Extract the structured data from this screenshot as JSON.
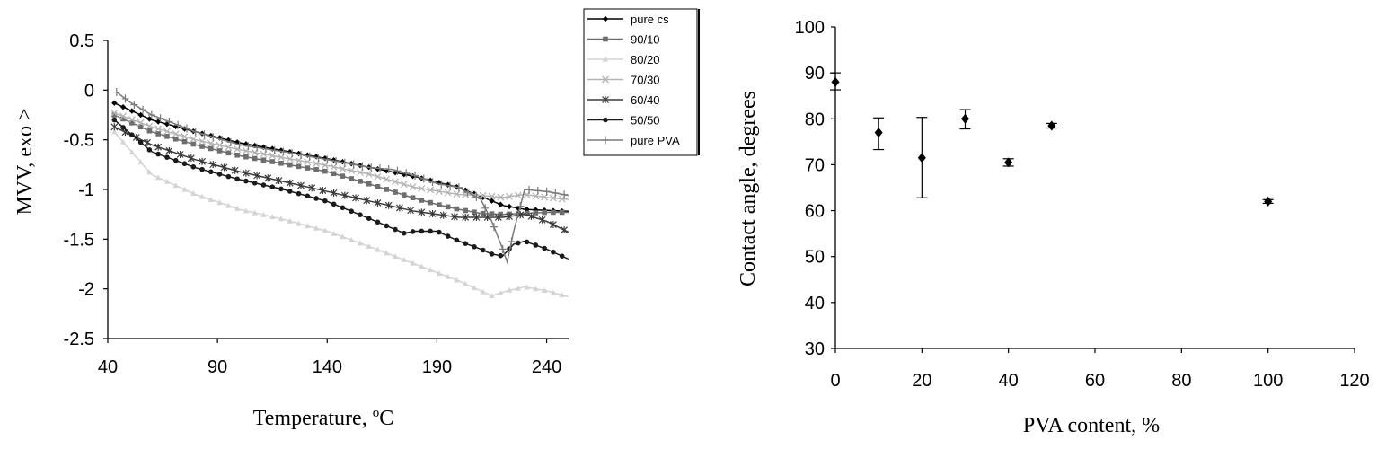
{
  "chart_data": [
    {
      "type": "line",
      "title": "",
      "xlabel": "Temperature, ",
      "xlabel_sup": "o",
      "xlabel_suffix": "C",
      "ylabel": "MVV, exo >",
      "xlim": [
        40,
        250
      ],
      "ylim": [
        -2.5,
        0.5
      ],
      "xticks": [
        "40",
        "90",
        "140",
        "190",
        "240"
      ],
      "yticks": [
        "0.5",
        "0",
        "-0.5",
        "-1",
        "-1.5",
        "-2",
        "-2.5"
      ],
      "grid": false,
      "legend": "top-right",
      "series": [
        {
          "name": "pure cs",
          "color": "#000000",
          "marker": "diamond",
          "x": [
            43,
            60,
            80,
            100,
            120,
            140,
            160,
            180,
            200,
            210,
            220,
            230,
            240,
            250
          ],
          "y": [
            -0.13,
            -0.3,
            -0.42,
            -0.53,
            -0.61,
            -0.69,
            -0.78,
            -0.87,
            -0.98,
            -1.07,
            -1.16,
            -1.2,
            -1.21,
            -1.22
          ]
        },
        {
          "name": "90/10",
          "color": "#6e6e6e",
          "marker": "square",
          "x": [
            43,
            60,
            80,
            100,
            120,
            140,
            160,
            180,
            190,
            200,
            210,
            220,
            230,
            240,
            250
          ],
          "y": [
            -0.25,
            -0.42,
            -0.55,
            -0.66,
            -0.74,
            -0.82,
            -0.95,
            -1.09,
            -1.15,
            -1.2,
            -1.24,
            -1.25,
            -1.24,
            -1.23,
            -1.23
          ]
        },
        {
          "name": "80/20",
          "color": "#d4d4d4",
          "marker": "triangle",
          "x": [
            43,
            50,
            60,
            80,
            100,
            120,
            140,
            160,
            180,
            200,
            215,
            222,
            230,
            240,
            250
          ],
          "y": [
            -0.42,
            -0.6,
            -0.85,
            -1.05,
            -1.2,
            -1.3,
            -1.42,
            -1.58,
            -1.75,
            -1.92,
            -2.07,
            -2.02,
            -1.98,
            -2.02,
            -2.08
          ]
        },
        {
          "name": "70/30",
          "color": "#b4b4b4",
          "marker": "x",
          "x": [
            43,
            60,
            80,
            100,
            120,
            140,
            160,
            180,
            200,
            210,
            220,
            230,
            240,
            250
          ],
          "y": [
            -0.23,
            -0.37,
            -0.5,
            -0.6,
            -0.68,
            -0.76,
            -0.85,
            -0.98,
            -1.05,
            -1.06,
            -1.08,
            -1.05,
            -1.08,
            -1.1
          ]
        },
        {
          "name": "60/40",
          "color": "#3a3a3a",
          "marker": "star",
          "x": [
            43,
            60,
            80,
            100,
            120,
            140,
            160,
            180,
            200,
            210,
            220,
            230,
            240,
            250
          ],
          "y": [
            -0.37,
            -0.55,
            -0.7,
            -0.82,
            -0.92,
            -1.02,
            -1.12,
            -1.22,
            -1.28,
            -1.28,
            -1.28,
            -1.25,
            -1.32,
            -1.43
          ]
        },
        {
          "name": "50/50",
          "color": "#1a1a1a",
          "marker": "circle",
          "x": [
            43,
            60,
            80,
            100,
            120,
            140,
            160,
            175,
            180,
            190,
            200,
            210,
            215,
            220,
            225,
            230,
            240,
            250
          ],
          "y": [
            -0.3,
            -0.62,
            -0.78,
            -0.9,
            -1.0,
            -1.12,
            -1.3,
            -1.44,
            -1.42,
            -1.42,
            -1.52,
            -1.6,
            -1.65,
            -1.67,
            -1.55,
            -1.52,
            -1.6,
            -1.7
          ]
        },
        {
          "name": "pure PVA",
          "color": "#7a7a7a",
          "marker": "plus",
          "x": [
            44,
            50,
            60,
            80,
            100,
            120,
            140,
            160,
            170,
            180,
            190,
            200,
            210,
            215,
            220,
            222,
            225,
            230,
            240,
            250
          ],
          "y": [
            -0.02,
            -0.12,
            -0.25,
            -0.42,
            -0.55,
            -0.62,
            -0.7,
            -0.78,
            -0.8,
            -0.86,
            -0.94,
            -0.98,
            -1.1,
            -1.32,
            -1.6,
            -1.73,
            -1.42,
            -1.0,
            -1.02,
            -1.06
          ]
        }
      ]
    },
    {
      "type": "scatter",
      "title": "",
      "xlabel": "PVA content, %",
      "ylabel": "Contact angle, degrees",
      "xlim": [
        0,
        120
      ],
      "ylim": [
        30,
        100
      ],
      "xticks": [
        "0",
        "20",
        "40",
        "60",
        "80",
        "100",
        "120"
      ],
      "yticks": [
        "100",
        "90",
        "80",
        "70",
        "60",
        "50",
        "40",
        "30"
      ],
      "grid": false,
      "legend": "none",
      "series": [
        {
          "marker": "diamond",
          "color": "#000000",
          "x": [
            0,
            10,
            20,
            30,
            40,
            50,
            100
          ],
          "y": [
            88,
            77,
            71.5,
            80,
            70.5,
            78.5,
            62
          ],
          "err_low": [
            1.7,
            3.7,
            8.7,
            2.2,
            0.8,
            0.5,
            0.4
          ],
          "err_high": [
            2.0,
            3.2,
            8.8,
            2.0,
            0.8,
            0.5,
            0.4
          ]
        }
      ]
    }
  ]
}
